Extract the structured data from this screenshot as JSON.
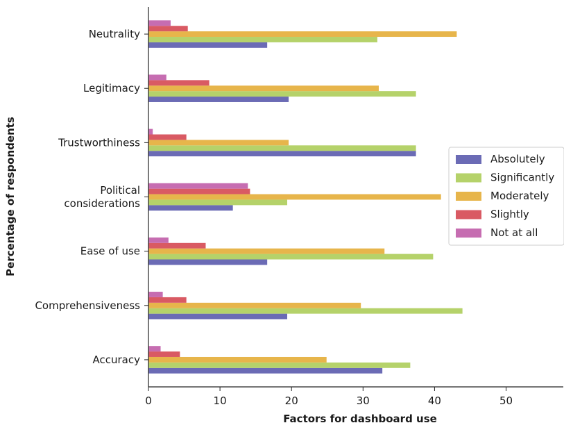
{
  "chart_data": {
    "type": "bar",
    "orientation": "horizontal",
    "categories": [
      "Neutrality",
      "Legitimacy",
      "Trustworthiness",
      "Political\nconsiderations",
      "Ease of use",
      "Comprehensiveness",
      "Accuracy"
    ],
    "series": [
      {
        "name": "Absolutely",
        "color": "#6b6bb5",
        "values": [
          16.6,
          19.6,
          37.4,
          11.8,
          16.6,
          19.4,
          32.7
        ]
      },
      {
        "name": "Significantly",
        "color": "#b5d26a",
        "values": [
          32.0,
          37.4,
          37.4,
          19.4,
          39.8,
          43.9,
          36.6
        ]
      },
      {
        "name": "Moderately",
        "color": "#e7b54b",
        "values": [
          43.1,
          32.2,
          19.6,
          40.9,
          33.0,
          29.7,
          24.9
        ]
      },
      {
        "name": "Slightly",
        "color": "#d95a63",
        "values": [
          5.5,
          8.5,
          5.3,
          14.2,
          8.0,
          5.3,
          4.4
        ]
      },
      {
        "name": "Not at all",
        "color": "#c66db1",
        "values": [
          3.1,
          2.5,
          0.6,
          13.9,
          2.8,
          2.0,
          1.7
        ]
      }
    ],
    "xlabel": "Factors for dashboard use",
    "ylabel": "Percentage of respondents",
    "xlim": [
      0,
      58
    ],
    "xticks": [
      0,
      10,
      20,
      30,
      40,
      50
    ],
    "legend_position": "center-right",
    "grid": false
  }
}
